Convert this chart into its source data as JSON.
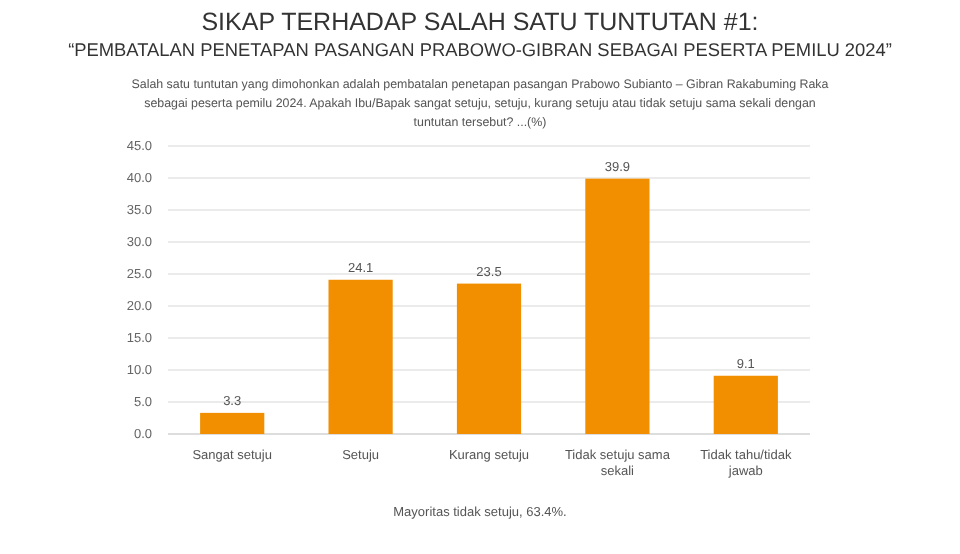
{
  "chart_data": {
    "type": "bar",
    "title": "SIKAP TERHADAP SALAH SATU TUNTUTAN #1:",
    "subtitle": "“PEMBATALAN PENETAPAN PASANGAN PRABOWO-GIBRAN SEBAGAI PESERTA PEMILU 2024”",
    "annotations": [
      "Salah satu tuntutan yang dimohonkan adalah pembatalan penetapan pasangan Prabowo Subianto – Gibran Rakabuming Raka sebagai peserta pemilu 2024. Apakah Ibu/Bapak sangat setuju, setuju, kurang setuju atau tidak setuju sama sekali dengan tuntutan tersebut? ...(%)",
      "Mayoritas tidak setuju, 63.4%."
    ],
    "categories": [
      "Sangat setuju",
      "Setuju",
      "Kurang setuju",
      "Tidak setuju sama sekali",
      "Tidak tahu/tidak jawab"
    ],
    "values": [
      3.3,
      24.1,
      23.5,
      39.9,
      9.1
    ],
    "color": "#f18f01",
    "ylim": [
      0,
      45
    ],
    "yticks": [
      {
        "value": 0,
        "label": "0.0"
      },
      {
        "value": 5,
        "label": "5.0"
      },
      {
        "value": 10,
        "label": "10.0"
      },
      {
        "value": 15,
        "label": "15.0"
      },
      {
        "value": 20,
        "label": "20.0"
      },
      {
        "value": 25,
        "label": "25.0"
      },
      {
        "value": 30,
        "label": "30.0"
      },
      {
        "value": 35,
        "label": "35.0"
      },
      {
        "value": 40,
        "label": "40.0"
      },
      {
        "value": 45,
        "label": "45.0"
      }
    ],
    "grid": "y",
    "data_labels": true
  }
}
